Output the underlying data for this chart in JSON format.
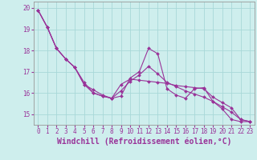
{
  "xlabel": "Windchill (Refroidissement éolien,°C)",
  "background_color": "#ceeeed",
  "grid_color": "#a8d8d8",
  "line_color": "#993399",
  "x_hours": [
    0,
    1,
    2,
    3,
    4,
    5,
    6,
    7,
    8,
    9,
    10,
    11,
    12,
    13,
    14,
    15,
    16,
    17,
    18,
    19,
    20,
    21,
    22,
    23
  ],
  "line1": [
    19.9,
    19.1,
    18.1,
    17.6,
    17.2,
    16.5,
    16.0,
    15.85,
    15.75,
    15.85,
    16.7,
    17.0,
    18.1,
    17.85,
    16.2,
    15.9,
    15.75,
    16.2,
    16.25,
    15.6,
    15.25,
    14.75,
    14.65,
    14.65
  ],
  "line2": [
    19.9,
    19.1,
    18.1,
    17.6,
    17.2,
    16.4,
    16.0,
    15.85,
    15.75,
    16.4,
    16.65,
    16.6,
    16.55,
    16.5,
    16.45,
    16.35,
    16.3,
    16.25,
    16.2,
    15.8,
    15.55,
    15.3,
    14.75,
    14.65
  ],
  "line3": [
    19.9,
    19.1,
    18.1,
    17.6,
    17.2,
    16.4,
    16.15,
    15.9,
    15.75,
    16.1,
    16.55,
    16.85,
    17.25,
    16.9,
    16.5,
    16.3,
    16.1,
    15.95,
    15.8,
    15.6,
    15.35,
    15.1,
    14.75,
    14.65
  ],
  "ylim": [
    14.5,
    20.3
  ],
  "yticks": [
    15,
    16,
    17,
    18,
    19,
    20
  ],
  "xticks": [
    0,
    1,
    2,
    3,
    4,
    5,
    6,
    7,
    8,
    9,
    10,
    11,
    12,
    13,
    14,
    15,
    16,
    17,
    18,
    19,
    20,
    21,
    22,
    23
  ],
  "tick_fontsize": 5.5,
  "xlabel_fontsize": 7.0,
  "marker": "D",
  "marker_size": 2.0,
  "linewidth": 0.8
}
